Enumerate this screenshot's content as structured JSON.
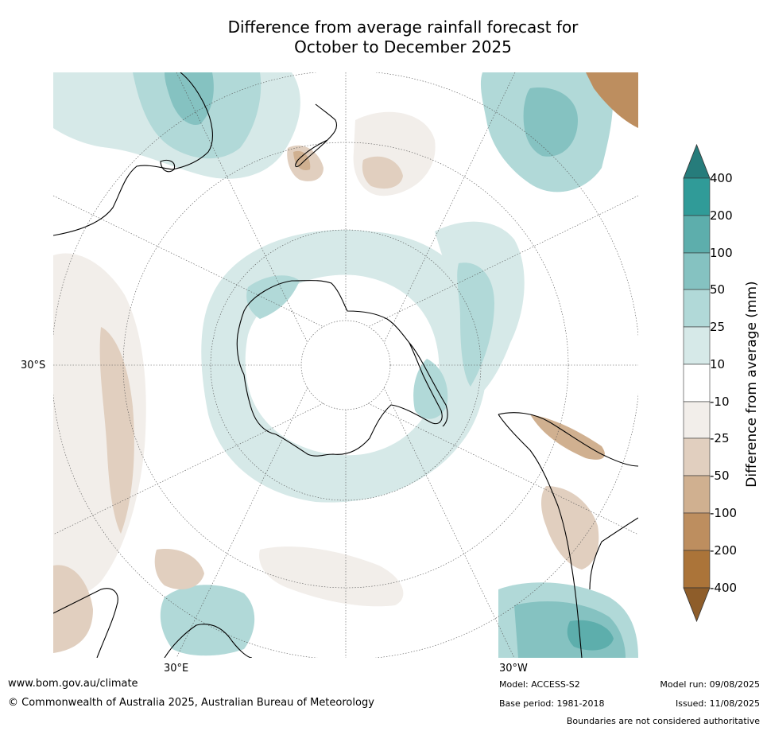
{
  "title_line1": "Difference from average rainfall forecast for",
  "title_line2": "October to December 2025",
  "axis_labels": {
    "left_lat": "30°S",
    "bottom_lon_left": "30°E",
    "bottom_lon_right": "30°W"
  },
  "colorbar": {
    "title": "Difference from average (mm)",
    "ticks": [
      "400",
      "200",
      "100",
      "50",
      "25",
      "10",
      "-10",
      "-25",
      "-50",
      "-100",
      "-200",
      "-400"
    ],
    "colors": {
      "gt400": "#267c7b",
      "200_400": "#309b98",
      "100_200": "#5daeac",
      "50_100": "#85c2c1",
      "25_50": "#b1d9d8",
      "10_25": "#d6e9e8",
      "neutral": "#ffffff",
      "m10_m25": "#f2eeea",
      "m25_m50": "#e1cfbf",
      "m50_m100": "#d0b090",
      "m100_m200": "#bd8e5f",
      "m200_m400": "#ab7439",
      "lt_m400": "#8e5d2a"
    }
  },
  "footer": {
    "website": "www.bom.gov.au/climate",
    "copyright": "© Commonwealth of Australia 2025, Australian Bureau of Meteorology",
    "model": "Model: ACCESS-S2",
    "base_period": "Base period: 1981-2018",
    "model_run": "Model run: 09/08/2025",
    "issued": "Issued: 11/08/2025",
    "disclaimer": "Boundaries are not considered authoritative"
  }
}
